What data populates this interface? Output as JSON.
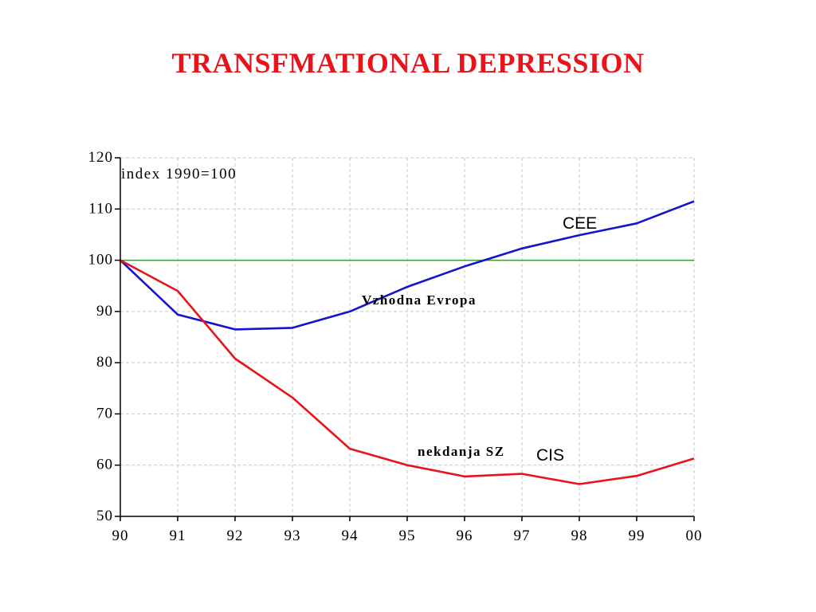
{
  "page": {
    "title": "TRANSFMATIONAL DEPRESSION"
  },
  "chart_data": {
    "type": "line",
    "title": "TRANSFMATIONAL DEPRESSION",
    "xlabel": "",
    "ylabel": "",
    "x": [
      "90",
      "91",
      "92",
      "93",
      "94",
      "95",
      "96",
      "97",
      "98",
      "99",
      "00"
    ],
    "ylim": [
      50,
      120
    ],
    "yticks": [
      50,
      60,
      70,
      80,
      90,
      100,
      110,
      120
    ],
    "grid": true,
    "reference_line": {
      "value": 100,
      "color": "#3a9a3a"
    },
    "series": [
      {
        "name": "CEE",
        "color": "#1414cc",
        "values": [
          100,
          89.4,
          86.5,
          86.8,
          90,
          94.8,
          98.8,
          102.3,
          104.9,
          107.2,
          111.5
        ]
      },
      {
        "name": "CIS",
        "color": "#e8141c",
        "values": [
          100,
          94,
          80.8,
          73.2,
          63.2,
          60,
          57.8,
          58.3,
          56.3,
          57.9,
          61.3
        ]
      }
    ],
    "annotations": {
      "index_note": "index 1990=100",
      "cee_label": "CEE",
      "cee_sub": "Vzhodna Evropa",
      "cis_sub": "nekdanja SZ",
      "cis_label": "CIS"
    }
  }
}
